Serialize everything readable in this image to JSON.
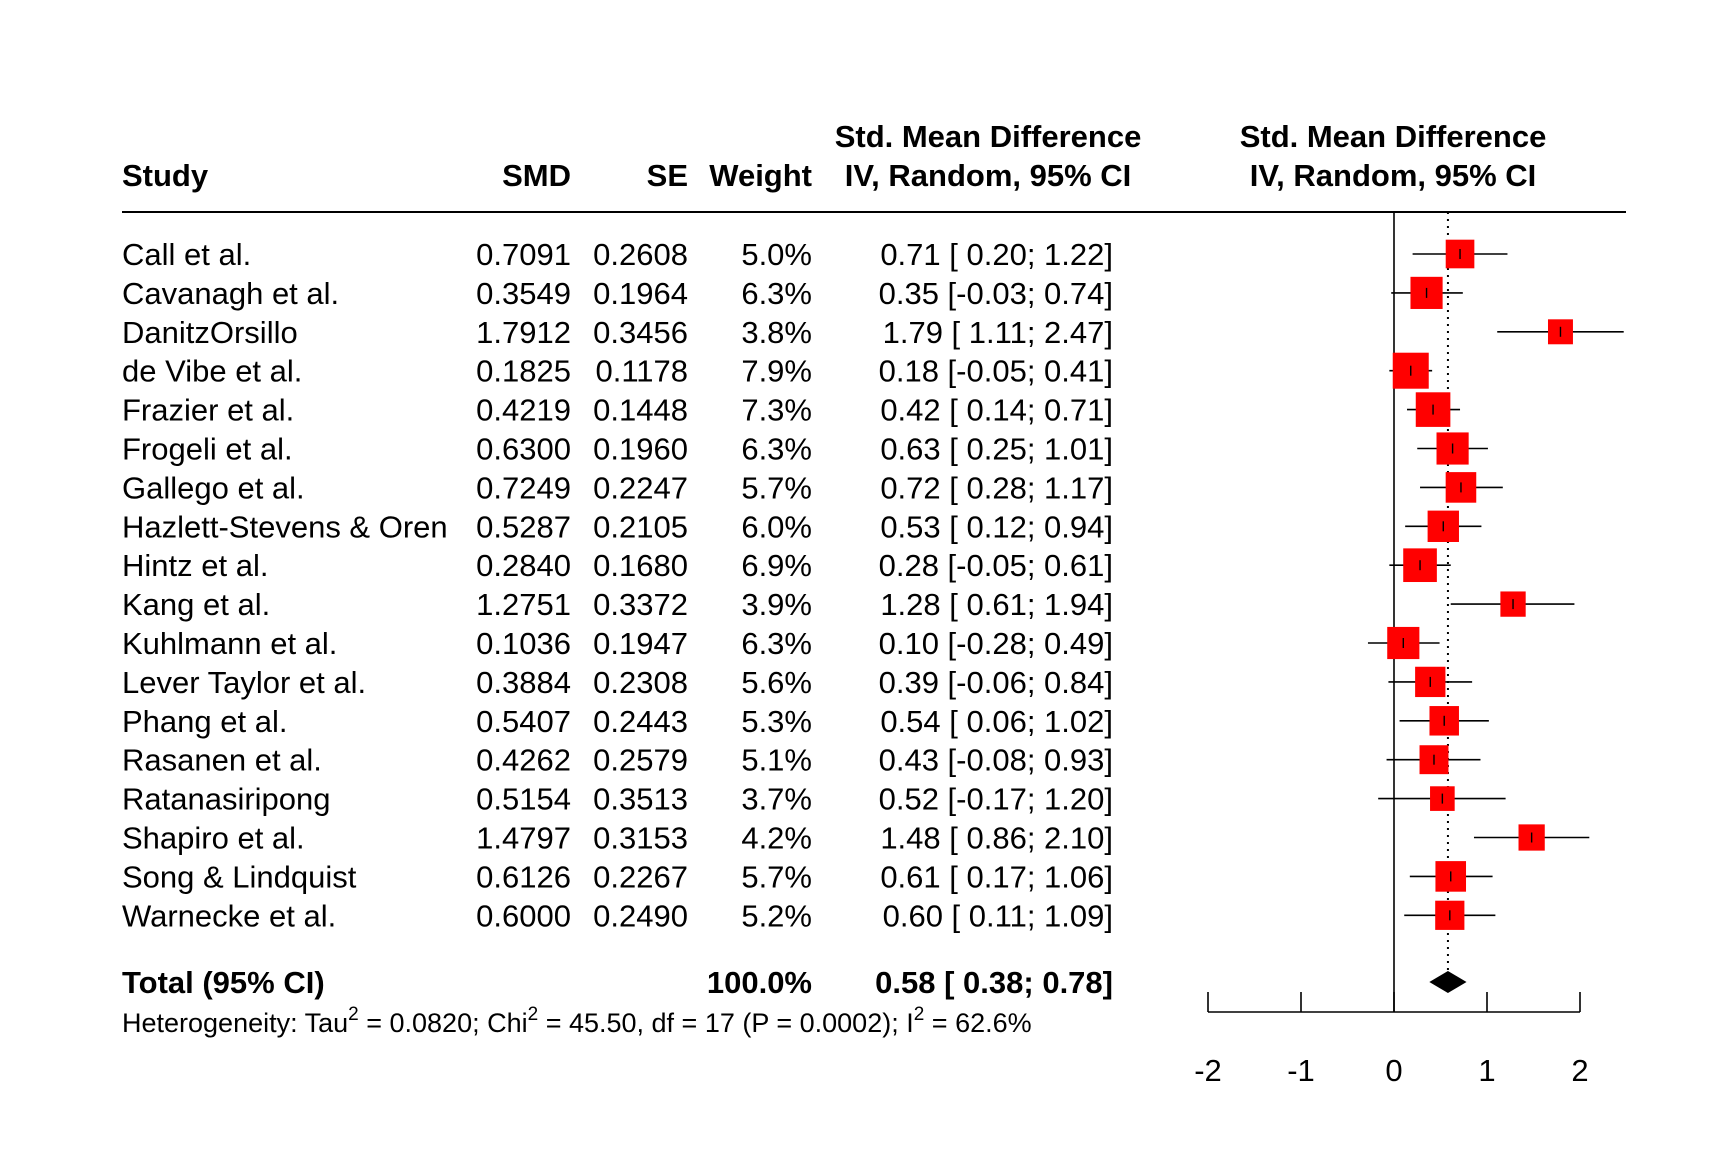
{
  "chart_data": {
    "type": "forest",
    "header": {
      "study": "Study",
      "smd": "SMD",
      "se": "SE",
      "weight": "Weight",
      "ci_col_line1": "Std. Mean Difference",
      "ci_col_line2": "IV, Random, 95% CI",
      "plot_col_line1": "Std. Mean Difference",
      "plot_col_line2": "IV, Random, 95% CI"
    },
    "studies": [
      {
        "study": "Call et al.",
        "smd": "0.7091",
        "se": "0.2608",
        "weight": "5.0%",
        "ci_text": "0.71 [ 0.20; 1.22]",
        "est": 0.71,
        "lower": 0.2,
        "upper": 1.22,
        "w": 5.0
      },
      {
        "study": "Cavanagh et al.",
        "smd": "0.3549",
        "se": "0.1964",
        "weight": "6.3%",
        "ci_text": "0.35 [-0.03; 0.74]",
        "est": 0.35,
        "lower": -0.03,
        "upper": 0.74,
        "w": 6.3
      },
      {
        "study": "DanitzOrsillo",
        "smd": "1.7912",
        "se": "0.3456",
        "weight": "3.8%",
        "ci_text": "1.79 [ 1.11; 2.47]",
        "est": 1.79,
        "lower": 1.11,
        "upper": 2.47,
        "w": 3.8
      },
      {
        "study": "de Vibe et al.",
        "smd": "0.1825",
        "se": "0.1178",
        "weight": "7.9%",
        "ci_text": "0.18 [-0.05; 0.41]",
        "est": 0.18,
        "lower": -0.05,
        "upper": 0.41,
        "w": 7.9
      },
      {
        "study": "Frazier et al.",
        "smd": "0.4219",
        "se": "0.1448",
        "weight": "7.3%",
        "ci_text": "0.42 [ 0.14; 0.71]",
        "est": 0.42,
        "lower": 0.14,
        "upper": 0.71,
        "w": 7.3
      },
      {
        "study": "Frogeli et al.",
        "smd": "0.6300",
        "se": "0.1960",
        "weight": "6.3%",
        "ci_text": "0.63 [ 0.25; 1.01]",
        "est": 0.63,
        "lower": 0.25,
        "upper": 1.01,
        "w": 6.3
      },
      {
        "study": "Gallego et al.",
        "smd": "0.7249",
        "se": "0.2247",
        "weight": "5.7%",
        "ci_text": "0.72 [ 0.28; 1.17]",
        "est": 0.72,
        "lower": 0.28,
        "upper": 1.17,
        "w": 5.7
      },
      {
        "study": "Hazlett-Stevens & Oren",
        "smd": "0.5287",
        "se": "0.2105",
        "weight": "6.0%",
        "ci_text": "0.53 [ 0.12; 0.94]",
        "est": 0.53,
        "lower": 0.12,
        "upper": 0.94,
        "w": 6.0
      },
      {
        "study": "Hintz et al.",
        "smd": "0.2840",
        "se": "0.1680",
        "weight": "6.9%",
        "ci_text": "0.28 [-0.05; 0.61]",
        "est": 0.28,
        "lower": -0.05,
        "upper": 0.61,
        "w": 6.9
      },
      {
        "study": "Kang et al.",
        "smd": "1.2751",
        "se": "0.3372",
        "weight": "3.9%",
        "ci_text": "1.28 [ 0.61; 1.94]",
        "est": 1.28,
        "lower": 0.61,
        "upper": 1.94,
        "w": 3.9
      },
      {
        "study": "Kuhlmann et al.",
        "smd": "0.1036",
        "se": "0.1947",
        "weight": "6.3%",
        "ci_text": "0.10 [-0.28; 0.49]",
        "est": 0.1,
        "lower": -0.28,
        "upper": 0.49,
        "w": 6.3
      },
      {
        "study": "Lever Taylor et al.",
        "smd": "0.3884",
        "se": "0.2308",
        "weight": "5.6%",
        "ci_text": "0.39 [-0.06; 0.84]",
        "est": 0.39,
        "lower": -0.06,
        "upper": 0.84,
        "w": 5.6
      },
      {
        "study": "Phang et al.",
        "smd": "0.5407",
        "se": "0.2443",
        "weight": "5.3%",
        "ci_text": "0.54 [ 0.06; 1.02]",
        "est": 0.54,
        "lower": 0.06,
        "upper": 1.02,
        "w": 5.3
      },
      {
        "study": "Rasanen et al.",
        "smd": "0.4262",
        "se": "0.2579",
        "weight": "5.1%",
        "ci_text": "0.43 [-0.08; 0.93]",
        "est": 0.43,
        "lower": -0.08,
        "upper": 0.93,
        "w": 5.1
      },
      {
        "study": "Ratanasiripong",
        "smd": "0.5154",
        "se": "0.3513",
        "weight": "3.7%",
        "ci_text": "0.52 [-0.17; 1.20]",
        "est": 0.52,
        "lower": -0.17,
        "upper": 1.2,
        "w": 3.7
      },
      {
        "study": "Shapiro et al.",
        "smd": "1.4797",
        "se": "0.3153",
        "weight": "4.2%",
        "ci_text": "1.48 [ 0.86; 2.10]",
        "est": 1.48,
        "lower": 0.86,
        "upper": 2.1,
        "w": 4.2
      },
      {
        "study": "Song & Lindquist",
        "smd": "0.6126",
        "se": "0.2267",
        "weight": "5.7%",
        "ci_text": "0.61 [ 0.17; 1.06]",
        "est": 0.61,
        "lower": 0.17,
        "upper": 1.06,
        "w": 5.7
      },
      {
        "study": "Warnecke et al.",
        "smd": "0.6000",
        "se": "0.2490",
        "weight": "5.2%",
        "ci_text": "0.60 [ 0.11; 1.09]",
        "est": 0.6,
        "lower": 0.11,
        "upper": 1.09,
        "w": 5.2
      }
    ],
    "total": {
      "label": "Total (95% CI)",
      "weight": "100.0%",
      "ci_text": "0.58 [ 0.38; 0.78]",
      "est": 0.58,
      "lower": 0.38,
      "upper": 0.78
    },
    "heterogeneity": {
      "p1": "Heterogeneity: Tau",
      "sup1": "2",
      "p2": " = 0.0820; Chi",
      "sup2": "2",
      "p3": " = 45.50, df = 17 (P = 0.0002); I",
      "sup3": "2",
      "p4": " = 62.6%"
    },
    "x_axis": {
      "range": [
        -2,
        2
      ],
      "ticks": [
        -2,
        -1,
        0,
        1,
        2
      ],
      "tick_labels": [
        "-2",
        "-1",
        "0",
        "1",
        "2"
      ]
    },
    "clip_range": [
      -2,
      2.47
    ],
    "colors": {
      "box": "#ff0000",
      "diamond": "#000000",
      "lines": "#000000"
    }
  }
}
